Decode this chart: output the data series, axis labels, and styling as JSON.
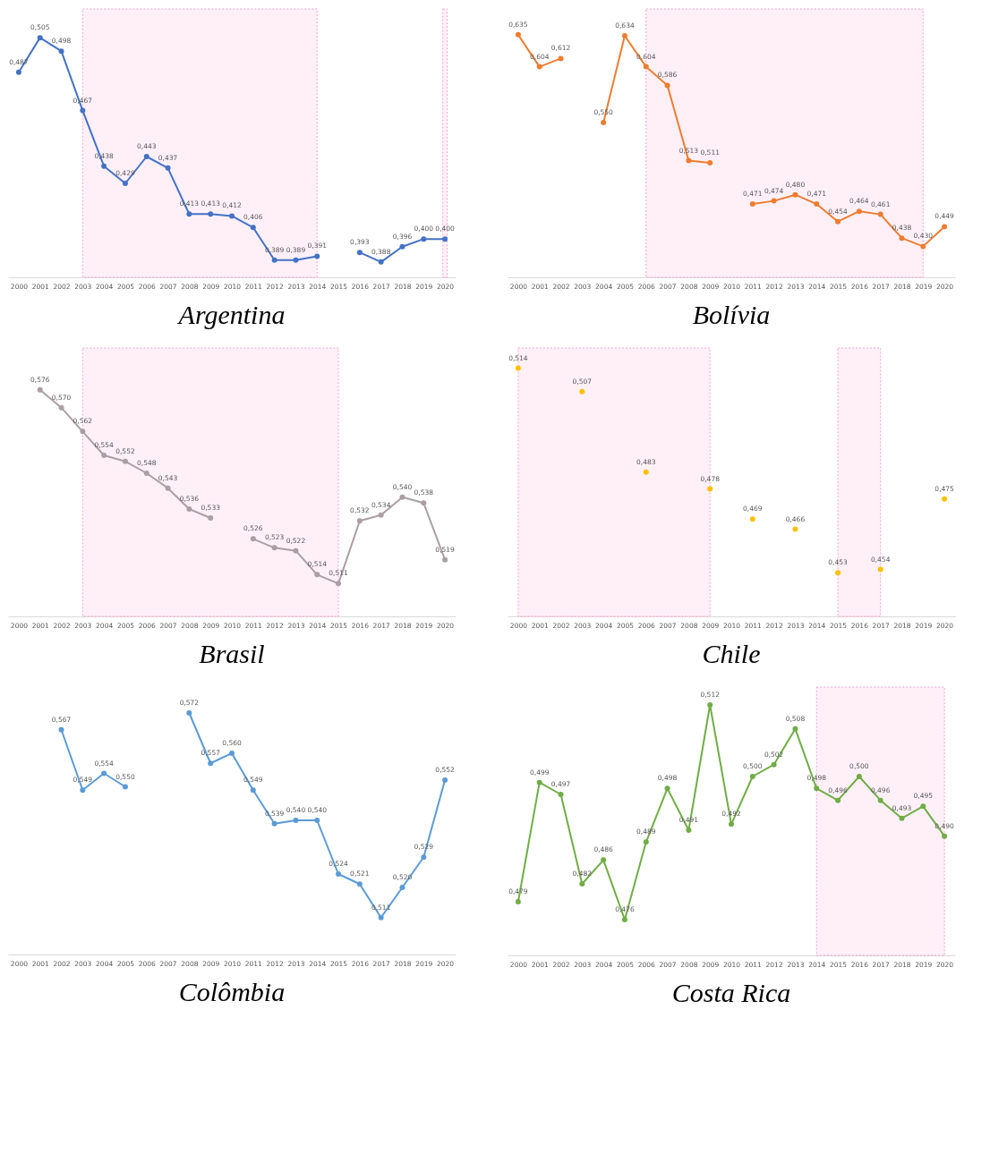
{
  "chart_data": [
    {
      "type": "line",
      "title": "Argentina",
      "x": [
        2000,
        2001,
        2002,
        2003,
        2004,
        2005,
        2006,
        2007,
        2008,
        2009,
        2010,
        2011,
        2012,
        2013,
        2014,
        2015,
        2016,
        2017,
        2018,
        2019,
        2020
      ],
      "xlim": [
        1999.5,
        2020.5
      ],
      "xticks": [
        2000,
        2001,
        2002,
        2003,
        2004,
        2005,
        2006,
        2007,
        2008,
        2009,
        2010,
        2011,
        2012,
        2013,
        2014,
        2015,
        2016,
        2017,
        2018,
        2019,
        2020
      ],
      "marker": "circle",
      "tick_labels": "x",
      "series": [
        {
          "color": "#4472c4",
          "values": [
            0.487,
            0.505,
            0.498,
            0.467,
            0.438,
            0.429,
            0.443,
            0.437,
            0.413,
            0.413,
            0.412,
            0.406,
            0.389,
            0.389,
            0.391,
            null,
            0.393,
            0.388,
            0.396,
            0.4,
            0.4
          ],
          "value_labels": [
            "0,487",
            "0,505",
            "0,498",
            "0,467",
            "0,438",
            "0,429",
            "0,443",
            "0,437",
            "0,413",
            "0,413",
            "0,412",
            "0,406",
            "0,389",
            "0,389",
            "0,391",
            null,
            "0,393",
            "0,388",
            "0,396",
            "0,400",
            "0,400"
          ]
        }
      ],
      "bands": [
        {
          "axis": "x",
          "from": 2003,
          "to": 2014,
          "color": "#fff0f8"
        },
        {
          "axis": "x",
          "from": 2019.9,
          "to": 2020.1,
          "color": "#fff0f8"
        }
      ]
    },
    {
      "type": "line",
      "title": "Bolívia",
      "x": [
        2000,
        2001,
        2002,
        2003,
        2004,
        2005,
        2006,
        2007,
        2008,
        2009,
        2010,
        2011,
        2012,
        2013,
        2014,
        2015,
        2016,
        2017,
        2018,
        2019,
        2020
      ],
      "xlim": [
        1999.5,
        2020.5
      ],
      "xticks": [
        2000,
        2001,
        2002,
        2003,
        2004,
        2005,
        2006,
        2007,
        2008,
        2009,
        2010,
        2011,
        2012,
        2013,
        2014,
        2015,
        2016,
        2017,
        2018,
        2019,
        2020
      ],
      "marker": "circle",
      "tick_labels": "x",
      "series": [
        {
          "color": "#ed7d31",
          "values": [
            0.635,
            0.604,
            0.612,
            null,
            0.55,
            0.634,
            0.604,
            0.586,
            0.513,
            0.511,
            null,
            0.471,
            0.474,
            0.48,
            0.471,
            0.454,
            0.464,
            0.461,
            0.438,
            0.43,
            0.449
          ],
          "value_labels": [
            "0,635",
            "0,604",
            "0,612",
            null,
            "0,550",
            "0,634",
            "0,604",
            "0,586",
            "0,513",
            "0,511",
            null,
            "0,471",
            "0,474",
            "0,480",
            "0,471",
            "0,454",
            "0,464",
            "0,461",
            "0,438",
            "0,430",
            "0,449"
          ]
        }
      ],
      "bands": [
        {
          "axis": "x",
          "from": 2006,
          "to": 2019,
          "color": "#fff0f8"
        }
      ]
    },
    {
      "type": "line",
      "title": "Brasil",
      "x": [
        2001,
        2002,
        2003,
        2004,
        2005,
        2006,
        2007,
        2008,
        2009,
        2010,
        2011,
        2012,
        2013,
        2014,
        2015,
        2016,
        2017,
        2018,
        2019,
        2020
      ],
      "xlim": [
        1999.5,
        2020.5
      ],
      "xticks": [
        2000,
        2001,
        2002,
        2003,
        2004,
        2005,
        2006,
        2007,
        2008,
        2009,
        2010,
        2011,
        2012,
        2013,
        2014,
        2015,
        2016,
        2017,
        2018,
        2019,
        2020
      ],
      "marker": "circle",
      "tick_labels": "x",
      "series": [
        {
          "color": "#ab9fa4",
          "values": [
            0.576,
            0.57,
            0.562,
            0.554,
            0.552,
            0.548,
            0.543,
            0.536,
            0.533,
            null,
            0.526,
            0.523,
            0.522,
            0.514,
            0.511,
            0.532,
            0.534,
            0.54,
            0.538,
            0.519
          ],
          "value_labels": [
            "0,576",
            "0,570",
            "0,562",
            "0,554",
            "0,552",
            "0,548",
            "0,543",
            "0,536",
            "0,533",
            null,
            "0,526",
            "0,523",
            "0,522",
            "0,514",
            "0,511",
            "0,532",
            "0,534",
            "0,540",
            "0,538",
            "0,519"
          ]
        }
      ],
      "bands": [
        {
          "axis": "x",
          "from": 2003,
          "to": 2015,
          "color": "#fff0f8"
        }
      ]
    },
    {
      "type": "scatter",
      "title": "Chile",
      "x": [
        2000,
        2001,
        2002,
        2003,
        2004,
        2005,
        2006,
        2007,
        2008,
        2009,
        2010,
        2011,
        2012,
        2013,
        2014,
        2015,
        2016,
        2017,
        2018,
        2019,
        2020
      ],
      "xlim": [
        1999.5,
        2020.5
      ],
      "xticks": [
        2000,
        2001,
        2002,
        2003,
        2004,
        2005,
        2006,
        2007,
        2008,
        2009,
        2010,
        2011,
        2012,
        2013,
        2014,
        2015,
        2016,
        2017,
        2018,
        2019,
        2020
      ],
      "marker": "circle",
      "tick_labels": "x",
      "series": [
        {
          "color": "#ffc000",
          "values": [
            0.514,
            null,
            null,
            0.507,
            null,
            null,
            0.483,
            null,
            null,
            0.478,
            null,
            0.469,
            null,
            0.466,
            null,
            0.453,
            null,
            0.454,
            null,
            null,
            0.475
          ],
          "value_labels": [
            "0,514",
            null,
            null,
            "0,507",
            null,
            null,
            "0,483",
            null,
            null,
            "0,478",
            null,
            "0,469",
            null,
            "0,466",
            null,
            "0,453",
            null,
            "0,454",
            null,
            null,
            "0,475"
          ]
        }
      ],
      "bands": [
        {
          "axis": "x",
          "from": 2000,
          "to": 2009,
          "color": "#fff0f8"
        },
        {
          "axis": "x",
          "from": 2015,
          "to": 2017,
          "color": "#fff0f8"
        }
      ]
    },
    {
      "type": "line",
      "title": "Colômbia",
      "x": [
        2002,
        2003,
        2004,
        2005,
        2006,
        2007,
        2008,
        2009,
        2010,
        2011,
        2012,
        2013,
        2014,
        2015,
        2016,
        2017,
        2018,
        2019,
        2020
      ],
      "xlim": [
        1999.5,
        2020.5
      ],
      "xticks": [
        2000,
        2001,
        2002,
        2003,
        2004,
        2005,
        2006,
        2007,
        2008,
        2009,
        2010,
        2011,
        2012,
        2013,
        2014,
        2015,
        2016,
        2017,
        2018,
        2019,
        2020
      ],
      "marker": "circle",
      "tick_labels": "x",
      "series": [
        {
          "color": "#5b9bd5",
          "values": [
            0.567,
            0.549,
            0.554,
            0.55,
            null,
            null,
            0.572,
            0.557,
            0.56,
            0.549,
            0.539,
            0.54,
            0.54,
            0.524,
            0.521,
            0.511,
            0.52,
            0.529,
            0.552
          ],
          "value_labels": [
            "0,567",
            "0,549",
            "0,554",
            "0,550",
            null,
            null,
            "0,572",
            "0,557",
            "0,560",
            "0,549",
            "0,539",
            "0,540",
            "0,540",
            "0,524",
            "0,521",
            "0,511",
            "0,520",
            "0,529",
            "0,552"
          ]
        }
      ]
    },
    {
      "type": "line",
      "title": "Costa Rica",
      "x": [
        2000,
        2001,
        2002,
        2003,
        2004,
        2005,
        2006,
        2007,
        2008,
        2009,
        2010,
        2011,
        2012,
        2013,
        2014,
        2015,
        2016,
        2017,
        2018,
        2019,
        2020
      ],
      "xlim": [
        1999.5,
        2020.5
      ],
      "xticks": [
        2000,
        2001,
        2002,
        2003,
        2004,
        2005,
        2006,
        2007,
        2008,
        2009,
        2010,
        2011,
        2012,
        2013,
        2014,
        2015,
        2016,
        2017,
        2018,
        2019,
        2020
      ],
      "marker": "circle",
      "tick_labels": "x",
      "series": [
        {
          "color": "#70ad47",
          "values": [
            0.479,
            0.499,
            0.497,
            0.482,
            0.486,
            0.476,
            0.489,
            0.498,
            0.491,
            0.512,
            0.492,
            0.5,
            0.502,
            0.508,
            0.498,
            0.496,
            0.5,
            0.496,
            0.493,
            0.495,
            0.49
          ],
          "value_labels": [
            "0,479",
            "0,499",
            "0,497",
            "0,482",
            "0,486",
            "0,476",
            "0,489",
            "0,498",
            "0,491",
            "0,512",
            "0,492",
            "0,500",
            "0,502",
            "0,508",
            "0,498",
            "0,496",
            "0,500",
            "0,496",
            "0,493",
            "0,495",
            "0,490"
          ]
        }
      ],
      "bands": [
        {
          "axis": "x",
          "from": 2014,
          "to": 2020,
          "color": "#fff0f8"
        }
      ]
    }
  ]
}
